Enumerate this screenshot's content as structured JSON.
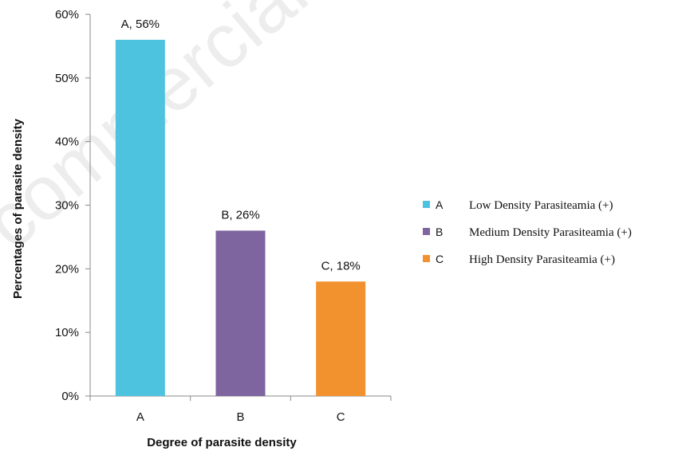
{
  "chart_data": {
    "type": "bar",
    "categories": [
      "A",
      "B",
      "C"
    ],
    "values": [
      56,
      26,
      18
    ],
    "data_labels": [
      "A, 56%",
      "B, 26%",
      "C, 18%"
    ],
    "colors": [
      "#4ec3e0",
      "#7e65a0",
      "#f2922f"
    ],
    "xlabel": "Degree of parasite density",
    "ylabel": "Percentages of parasite density",
    "ylim": [
      0,
      60
    ],
    "yticks": [
      "0%",
      "10%",
      "20%",
      "30%",
      "40%",
      "50%",
      "60%"
    ],
    "grid": false,
    "legend_position": "right",
    "legend": [
      {
        "key": "A",
        "label": "Low Density Parasiteamia (+)",
        "color": "#4ec3e0"
      },
      {
        "key": "B",
        "label": "Medium Density Parasiteamia (+)",
        "color": "#7e65a0"
      },
      {
        "key": "C",
        "label": "High Density Parasiteamia (+)",
        "color": "#f2922f"
      }
    ]
  },
  "watermark": "commercial use o"
}
